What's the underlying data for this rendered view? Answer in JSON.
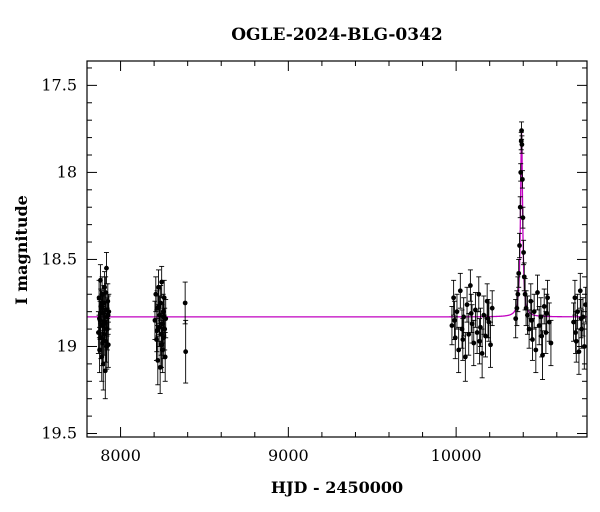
{
  "chart_data": {
    "type": "scatter",
    "title": "OGLE-2024-BLG-0342",
    "xlabel": "HJD - 2450000",
    "ylabel": "I magnitude",
    "xlim": [
      7800,
      10780
    ],
    "ylim": [
      19.52,
      17.36
    ],
    "y_inverted": true,
    "x_ticks": [
      8000,
      9000,
      10000
    ],
    "x_tick_labels": [
      "8000",
      "9000",
      "10000"
    ],
    "y_ticks": [
      17.5,
      18,
      18.5,
      19,
      19.5
    ],
    "y_tick_labels": [
      "17.5",
      "18",
      "18.5",
      "19",
      "19.5"
    ],
    "grid": false,
    "colors": {
      "data": "#000000",
      "model": "#c000c0",
      "frame": "#000000"
    },
    "series": [
      {
        "kind": "points",
        "points": [
          {
            "x": 7868,
            "y": 18.92,
            "err": 0.12
          },
          {
            "x": 7872,
            "y": 18.72,
            "err": 0.1
          },
          {
            "x": 7875,
            "y": 19.02,
            "err": 0.13
          },
          {
            "x": 7878,
            "y": 18.85,
            "err": 0.11
          },
          {
            "x": 7880,
            "y": 18.62,
            "err": 0.09
          },
          {
            "x": 7883,
            "y": 18.95,
            "err": 0.12
          },
          {
            "x": 7886,
            "y": 18.78,
            "err": 0.1
          },
          {
            "x": 7888,
            "y": 19.06,
            "err": 0.14
          },
          {
            "x": 7890,
            "y": 18.7,
            "err": 0.1
          },
          {
            "x": 7893,
            "y": 18.88,
            "err": 0.11
          },
          {
            "x": 7895,
            "y": 18.81,
            "err": 0.1
          },
          {
            "x": 7897,
            "y": 19.1,
            "err": 0.15
          },
          {
            "x": 7900,
            "y": 18.75,
            "err": 0.1
          },
          {
            "x": 7902,
            "y": 18.93,
            "err": 0.12
          },
          {
            "x": 7905,
            "y": 18.66,
            "err": 0.09
          },
          {
            "x": 7907,
            "y": 18.86,
            "err": 0.11
          },
          {
            "x": 7909,
            "y": 19.14,
            "err": 0.16
          },
          {
            "x": 7912,
            "y": 18.79,
            "err": 0.1
          },
          {
            "x": 7914,
            "y": 18.97,
            "err": 0.12
          },
          {
            "x": 7916,
            "y": 18.55,
            "err": 0.09
          },
          {
            "x": 7919,
            "y": 18.83,
            "err": 0.11
          },
          {
            "x": 7921,
            "y": 18.9,
            "err": 0.12
          },
          {
            "x": 7924,
            "y": 18.74,
            "err": 0.1
          },
          {
            "x": 7927,
            "y": 18.99,
            "err": 0.13
          },
          {
            "x": 7930,
            "y": 18.8,
            "err": 0.1
          },
          {
            "x": 7874,
            "y": 18.84,
            "err": 0.11
          },
          {
            "x": 7882,
            "y": 18.77,
            "err": 0.1
          },
          {
            "x": 7892,
            "y": 18.98,
            "err": 0.13
          },
          {
            "x": 7899,
            "y": 18.87,
            "err": 0.11
          },
          {
            "x": 7911,
            "y": 18.69,
            "err": 0.09
          },
          {
            "x": 7918,
            "y": 19.0,
            "err": 0.13
          },
          {
            "x": 7926,
            "y": 18.82,
            "err": 0.11
          },
          {
            "x": 8205,
            "y": 18.85,
            "err": 0.11
          },
          {
            "x": 8210,
            "y": 18.7,
            "err": 0.1
          },
          {
            "x": 8214,
            "y": 18.96,
            "err": 0.12
          },
          {
            "x": 8218,
            "y": 18.78,
            "err": 0.1
          },
          {
            "x": 8222,
            "y": 19.08,
            "err": 0.14
          },
          {
            "x": 8226,
            "y": 18.66,
            "err": 0.1
          },
          {
            "x": 8230,
            "y": 18.89,
            "err": 0.11
          },
          {
            "x": 8233,
            "y": 18.82,
            "err": 0.11
          },
          {
            "x": 8236,
            "y": 19.12,
            "err": 0.15
          },
          {
            "x": 8239,
            "y": 18.75,
            "err": 0.1
          },
          {
            "x": 8242,
            "y": 18.93,
            "err": 0.12
          },
          {
            "x": 8245,
            "y": 18.63,
            "err": 0.09
          },
          {
            "x": 8248,
            "y": 18.87,
            "err": 0.11
          },
          {
            "x": 8251,
            "y": 19.02,
            "err": 0.13
          },
          {
            "x": 8254,
            "y": 18.8,
            "err": 0.1
          },
          {
            "x": 8257,
            "y": 18.95,
            "err": 0.12
          },
          {
            "x": 8260,
            "y": 18.72,
            "err": 0.1
          },
          {
            "x": 8263,
            "y": 18.9,
            "err": 0.12
          },
          {
            "x": 8266,
            "y": 19.06,
            "err": 0.14
          },
          {
            "x": 8269,
            "y": 18.84,
            "err": 0.11
          },
          {
            "x": 8216,
            "y": 18.91,
            "err": 0.12
          },
          {
            "x": 8228,
            "y": 18.77,
            "err": 0.1
          },
          {
            "x": 8244,
            "y": 18.99,
            "err": 0.13
          },
          {
            "x": 8258,
            "y": 18.83,
            "err": 0.11
          },
          {
            "x": 8385,
            "y": 18.75,
            "err": 0.12
          },
          {
            "x": 8388,
            "y": 19.03,
            "err": 0.18
          },
          {
            "x": 9975,
            "y": 18.88,
            "err": 0.11
          },
          {
            "x": 9985,
            "y": 18.72,
            "err": 0.1
          },
          {
            "x": 9995,
            "y": 18.95,
            "err": 0.12
          },
          {
            "x": 10005,
            "y": 18.8,
            "err": 0.1
          },
          {
            "x": 10015,
            "y": 19.02,
            "err": 0.13
          },
          {
            "x": 10025,
            "y": 18.68,
            "err": 0.1
          },
          {
            "x": 10035,
            "y": 18.9,
            "err": 0.11
          },
          {
            "x": 10045,
            "y": 18.83,
            "err": 0.11
          },
          {
            "x": 10055,
            "y": 19.06,
            "err": 0.14
          },
          {
            "x": 10065,
            "y": 18.76,
            "err": 0.1
          },
          {
            "x": 10075,
            "y": 18.93,
            "err": 0.12
          },
          {
            "x": 10085,
            "y": 18.65,
            "err": 0.09
          },
          {
            "x": 10095,
            "y": 18.87,
            "err": 0.11
          },
          {
            "x": 10105,
            "y": 18.98,
            "err": 0.13
          },
          {
            "x": 10115,
            "y": 18.79,
            "err": 0.1
          },
          {
            "x": 10125,
            "y": 18.92,
            "err": 0.12
          },
          {
            "x": 10135,
            "y": 18.7,
            "err": 0.1
          },
          {
            "x": 10145,
            "y": 18.89,
            "err": 0.11
          },
          {
            "x": 10155,
            "y": 19.04,
            "err": 0.14
          },
          {
            "x": 10165,
            "y": 18.82,
            "err": 0.11
          },
          {
            "x": 10175,
            "y": 18.94,
            "err": 0.12
          },
          {
            "x": 10185,
            "y": 18.74,
            "err": 0.1
          },
          {
            "x": 10195,
            "y": 18.86,
            "err": 0.11
          },
          {
            "x": 10205,
            "y": 18.99,
            "err": 0.13
          },
          {
            "x": 10215,
            "y": 18.78,
            "err": 0.1
          },
          {
            "x": 9990,
            "y": 18.85,
            "err": 0.11
          },
          {
            "x": 10040,
            "y": 18.96,
            "err": 0.12
          },
          {
            "x": 10090,
            "y": 18.81,
            "err": 0.11
          },
          {
            "x": 10140,
            "y": 18.97,
            "err": 0.13
          },
          {
            "x": 10190,
            "y": 18.84,
            "err": 0.11
          },
          {
            "x": 10355,
            "y": 18.84,
            "err": 0.11
          },
          {
            "x": 10362,
            "y": 18.78,
            "err": 0.1
          },
          {
            "x": 10368,
            "y": 18.7,
            "err": 0.1
          },
          {
            "x": 10373,
            "y": 18.58,
            "err": 0.08
          },
          {
            "x": 10378,
            "y": 18.42,
            "err": 0.07
          },
          {
            "x": 10382,
            "y": 18.2,
            "err": 0.06
          },
          {
            "x": 10385,
            "y": 18.0,
            "err": 0.05
          },
          {
            "x": 10388,
            "y": 17.82,
            "err": 0.05
          },
          {
            "x": 10390,
            "y": 17.76,
            "err": 0.05
          },
          {
            "x": 10392,
            "y": 17.84,
            "err": 0.05
          },
          {
            "x": 10395,
            "y": 18.04,
            "err": 0.05
          },
          {
            "x": 10398,
            "y": 18.26,
            "err": 0.06
          },
          {
            "x": 10402,
            "y": 18.46,
            "err": 0.07
          },
          {
            "x": 10406,
            "y": 18.6,
            "err": 0.08
          },
          {
            "x": 10411,
            "y": 18.7,
            "err": 0.09
          },
          {
            "x": 10417,
            "y": 18.78,
            "err": 0.1
          },
          {
            "x": 10425,
            "y": 18.82,
            "err": 0.11
          },
          {
            "x": 10435,
            "y": 18.9,
            "err": 0.11
          },
          {
            "x": 10445,
            "y": 18.74,
            "err": 0.1
          },
          {
            "x": 10455,
            "y": 18.96,
            "err": 0.12
          },
          {
            "x": 10465,
            "y": 18.8,
            "err": 0.1
          },
          {
            "x": 10475,
            "y": 19.02,
            "err": 0.13
          },
          {
            "x": 10485,
            "y": 18.69,
            "err": 0.1
          },
          {
            "x": 10495,
            "y": 18.88,
            "err": 0.11
          },
          {
            "x": 10505,
            "y": 18.83,
            "err": 0.11
          },
          {
            "x": 10515,
            "y": 19.05,
            "err": 0.14
          },
          {
            "x": 10525,
            "y": 18.77,
            "err": 0.1
          },
          {
            "x": 10535,
            "y": 18.92,
            "err": 0.12
          },
          {
            "x": 10545,
            "y": 18.72,
            "err": 0.1
          },
          {
            "x": 10555,
            "y": 18.86,
            "err": 0.11
          },
          {
            "x": 10565,
            "y": 18.98,
            "err": 0.13
          },
          {
            "x": 10450,
            "y": 18.85,
            "err": 0.11
          },
          {
            "x": 10510,
            "y": 18.94,
            "err": 0.12
          },
          {
            "x": 10540,
            "y": 18.81,
            "err": 0.11
          },
          {
            "x": 10700,
            "y": 18.86,
            "err": 0.11
          },
          {
            "x": 10708,
            "y": 18.72,
            "err": 0.1
          },
          {
            "x": 10716,
            "y": 18.97,
            "err": 0.12
          },
          {
            "x": 10724,
            "y": 18.8,
            "err": 0.1
          },
          {
            "x": 10732,
            "y": 19.03,
            "err": 0.13
          },
          {
            "x": 10740,
            "y": 18.68,
            "err": 0.1
          },
          {
            "x": 10748,
            "y": 18.9,
            "err": 0.11
          },
          {
            "x": 10756,
            "y": 18.83,
            "err": 0.11
          },
          {
            "x": 10764,
            "y": 19.0,
            "err": 0.13
          },
          {
            "x": 10772,
            "y": 18.76,
            "err": 0.1
          },
          {
            "x": 10712,
            "y": 18.92,
            "err": 0.12
          },
          {
            "x": 10744,
            "y": 18.84,
            "err": 0.11
          }
        ]
      },
      {
        "kind": "model",
        "baseline": 18.83,
        "peak_x": 10390,
        "peak_y": 17.76,
        "width": 22
      }
    ]
  }
}
